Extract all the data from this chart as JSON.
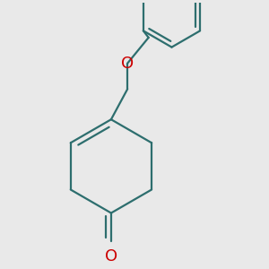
{
  "background_color": "#e9e9e9",
  "bond_color": "#2d6e6e",
  "heteroatom_color": "#cc0000",
  "line_width": 1.6,
  "figsize": [
    3.0,
    3.0
  ],
  "dpi": 100,
  "o_fontsize": 13
}
